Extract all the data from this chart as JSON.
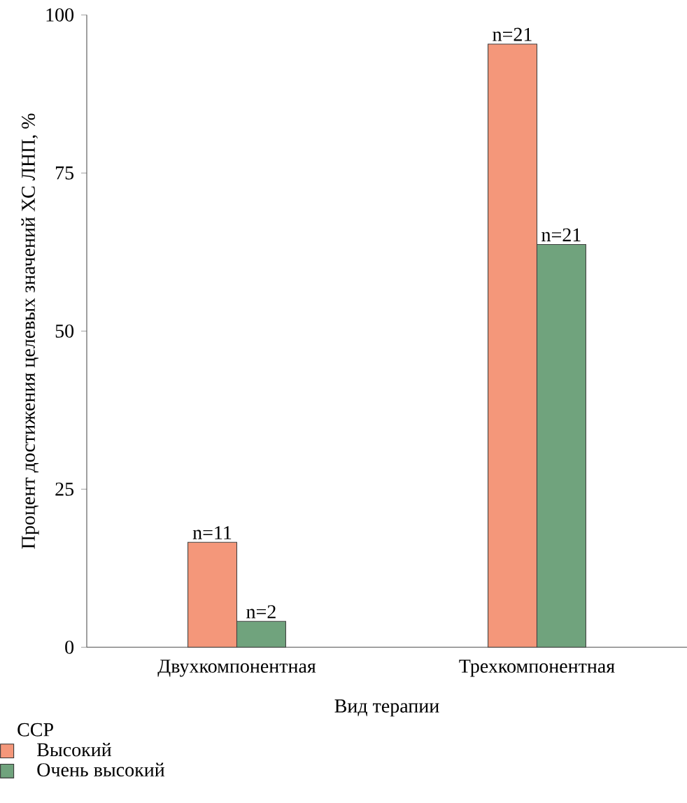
{
  "chart_data": {
    "type": "bar",
    "xlabel": "Вид терапии",
    "ylabel": "Процент достижения целевых значений ХС ЛНП, %",
    "legend_title": "ССР",
    "legend": "bottom left",
    "categories": [
      "Двухкомпонентная",
      "Трехкомпонентная"
    ],
    "series": [
      {
        "name": "Высокий",
        "color": "#f4977a",
        "values": [
          16.6,
          95.4
        ]
      },
      {
        "name": "Очень высокий",
        "color": "#70a37d",
        "values": [
          4.1,
          63.7
        ]
      }
    ],
    "ylim": [
      0,
      100
    ],
    "yticks": [
      0,
      25,
      50,
      75,
      100
    ],
    "grid": false,
    "annotations": [
      {
        "text": "n=11",
        "x": "Двухкомпонентная",
        "y": 16.6
      },
      {
        "text": "n=2",
        "x": "Двухкомпонентная",
        "y": 4.1
      },
      {
        "text": "n=21",
        "x": "Трехкомпонентная",
        "y": 95.4
      },
      {
        "text": "n=21",
        "x": "Трехкомпонентная",
        "y": 63.7
      }
    ]
  }
}
